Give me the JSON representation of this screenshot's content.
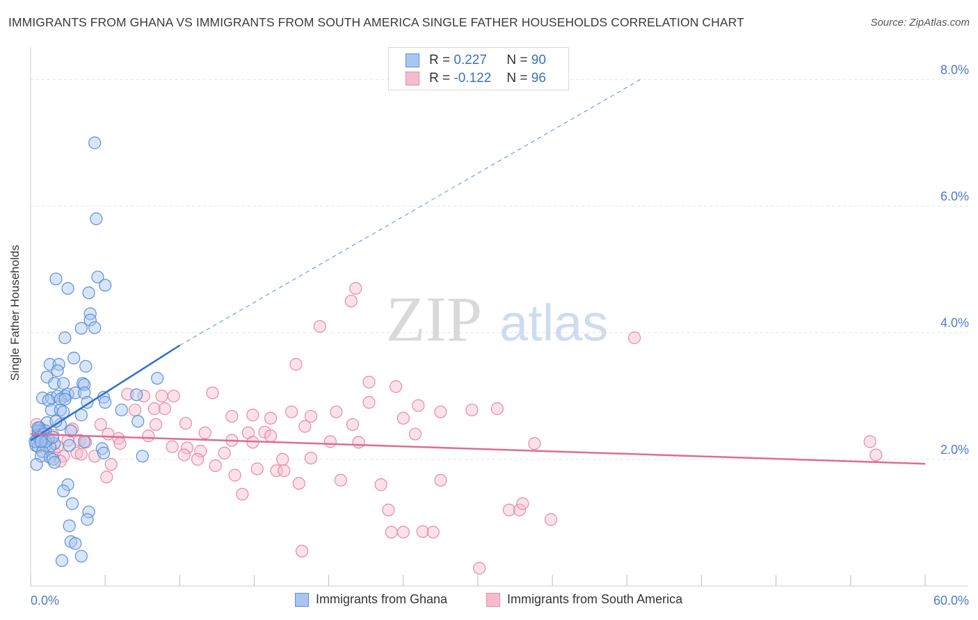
{
  "title": "IMMIGRANTS FROM GHANA VS IMMIGRANTS FROM SOUTH AMERICA SINGLE FATHER HOUSEHOLDS CORRELATION CHART",
  "source": "Source: ZipAtlas.com",
  "watermark": {
    "zip": "ZIP",
    "atlas": "atlas"
  },
  "legend": {
    "rows": [
      {
        "r_label": "R =",
        "r_value": "0.227",
        "n_label": "N =",
        "n_value": "90"
      },
      {
        "r_label": "R =",
        "r_value": "-0.122",
        "n_label": "N =",
        "n_value": "96"
      }
    ]
  },
  "bottom_legend": {
    "ghana": "Immigrants from Ghana",
    "south_america": "Immigrants from South America"
  },
  "colors": {
    "ghana_fill": "#a9c6ef",
    "ghana_stroke": "#5b8fd6",
    "ghana_line": "#2f6fcc",
    "sa_fill": "#f6bccd",
    "sa_stroke": "#e48aa6",
    "sa_line": "#e06b93",
    "tick_label": "#4a7bcf",
    "grid": "#e2e2e2"
  },
  "chart_data": {
    "type": "scatter",
    "title": "IMMIGRANTS FROM GHANA VS IMMIGRANTS FROM SOUTH AMERICA SINGLE FATHER HOUSEHOLDS CORRELATION CHART",
    "xlabel": "",
    "ylabel": "Single Father Households",
    "xlim": [
      0,
      60
    ],
    "ylim": [
      0,
      8.4
    ],
    "x_tick_labels": [
      "0.0%",
      "60.0%"
    ],
    "y_ticks": [
      2,
      4,
      6,
      8
    ],
    "y_tick_labels": [
      "2.0%",
      "4.0%",
      "6.0%",
      "8.0%"
    ],
    "grid": true,
    "legend_placement": "top-center",
    "series": [
      {
        "name": "Immigrants from Ghana",
        "R": 0.227,
        "N": 90,
        "trend": {
          "x": [
            0,
            10
          ],
          "y": [
            2.3,
            3.8
          ],
          "dashed_extension": {
            "x": [
              10,
              40.9
            ],
            "y": [
              3.8,
              8.0
            ]
          }
        },
        "points": [
          [
            4.3,
            7.0
          ],
          [
            4.4,
            5.8
          ],
          [
            1.7,
            4.85
          ],
          [
            4.5,
            4.88
          ],
          [
            2.5,
            4.7
          ],
          [
            5.0,
            4.75
          ],
          [
            3.9,
            4.63
          ],
          [
            4.0,
            4.3
          ],
          [
            4.0,
            4.2
          ],
          [
            3.4,
            4.07
          ],
          [
            4.3,
            4.08
          ],
          [
            2.3,
            3.92
          ],
          [
            1.3,
            3.5
          ],
          [
            2.9,
            3.6
          ],
          [
            1.9,
            3.5
          ],
          [
            3.7,
            3.47
          ],
          [
            1.8,
            3.4
          ],
          [
            1.1,
            3.3
          ],
          [
            1.6,
            3.2
          ],
          [
            2.2,
            3.2
          ],
          [
            3.5,
            3.2
          ],
          [
            3.6,
            3.18
          ],
          [
            8.5,
            3.28
          ],
          [
            0.8,
            2.97
          ],
          [
            1.4,
            2.97
          ],
          [
            1.8,
            3.0
          ],
          [
            2.3,
            3.0
          ],
          [
            2.5,
            3.03
          ],
          [
            3.0,
            3.05
          ],
          [
            3.6,
            3.05
          ],
          [
            4.9,
            2.98
          ],
          [
            5.0,
            2.9
          ],
          [
            7.1,
            3.02
          ],
          [
            1.2,
            2.93
          ],
          [
            2.0,
            2.95
          ],
          [
            2.3,
            2.95
          ],
          [
            3.8,
            2.9
          ],
          [
            1.4,
            2.78
          ],
          [
            2.0,
            2.78
          ],
          [
            2.2,
            2.75
          ],
          [
            6.1,
            2.78
          ],
          [
            3.4,
            2.7
          ],
          [
            7.2,
            2.6
          ],
          [
            1.1,
            2.58
          ],
          [
            0.6,
            2.5
          ],
          [
            0.7,
            2.45
          ],
          [
            0.5,
            2.45
          ],
          [
            0.8,
            2.42
          ],
          [
            1.0,
            2.45
          ],
          [
            2.7,
            2.45
          ],
          [
            0.5,
            2.38
          ],
          [
            0.4,
            2.3
          ],
          [
            0.6,
            2.3
          ],
          [
            0.9,
            2.32
          ],
          [
            1.6,
            2.25
          ],
          [
            2.6,
            2.22
          ],
          [
            3.6,
            2.28
          ],
          [
            0.35,
            2.22
          ],
          [
            0.5,
            2.2
          ],
          [
            1.0,
            2.22
          ],
          [
            1.3,
            2.2
          ],
          [
            0.8,
            2.12
          ],
          [
            4.8,
            2.17
          ],
          [
            0.7,
            2.05
          ],
          [
            1.3,
            2.03
          ],
          [
            1.5,
            2.0
          ],
          [
            1.6,
            1.95
          ],
          [
            4.9,
            2.1
          ],
          [
            7.5,
            2.05
          ],
          [
            0.4,
            1.92
          ],
          [
            2.5,
            1.6
          ],
          [
            2.2,
            1.5
          ],
          [
            2.8,
            1.3
          ],
          [
            3.9,
            1.17
          ],
          [
            2.6,
            0.95
          ],
          [
            3.8,
            1.05
          ],
          [
            2.7,
            0.7
          ],
          [
            3.0,
            0.67
          ],
          [
            3.4,
            0.47
          ],
          [
            2.1,
            0.4
          ],
          [
            0.5,
            2.5
          ],
          [
            0.6,
            2.35
          ],
          [
            0.9,
            2.4
          ],
          [
            1.2,
            2.33
          ],
          [
            0.3,
            2.28
          ],
          [
            1.0,
            2.28
          ],
          [
            1.5,
            2.35
          ],
          [
            0.7,
            2.28
          ],
          [
            2.0,
            2.55
          ],
          [
            1.7,
            2.6
          ]
        ]
      },
      {
        "name": "Immigrants from South America",
        "R": -0.122,
        "N": 96,
        "trend": {
          "x": [
            0,
            60
          ],
          "y": [
            2.4,
            1.93
          ]
        },
        "points": [
          [
            21.8,
            4.7
          ],
          [
            21.5,
            4.5
          ],
          [
            19.4,
            4.1
          ],
          [
            40.5,
            3.92
          ],
          [
            17.8,
            3.5
          ],
          [
            22.7,
            3.22
          ],
          [
            24.5,
            3.15
          ],
          [
            12.2,
            3.05
          ],
          [
            6.5,
            3.03
          ],
          [
            7.6,
            3.0
          ],
          [
            8.8,
            3.0
          ],
          [
            9.6,
            3.0
          ],
          [
            22.7,
            2.9
          ],
          [
            26.0,
            2.85
          ],
          [
            7.0,
            2.78
          ],
          [
            8.3,
            2.8
          ],
          [
            9.0,
            2.8
          ],
          [
            17.5,
            2.75
          ],
          [
            20.5,
            2.75
          ],
          [
            27.5,
            2.75
          ],
          [
            29.6,
            2.78
          ],
          [
            31.3,
            2.8
          ],
          [
            13.5,
            2.68
          ],
          [
            14.9,
            2.7
          ],
          [
            18.8,
            2.68
          ],
          [
            16.1,
            2.65
          ],
          [
            25.0,
            2.65
          ],
          [
            10.4,
            2.57
          ],
          [
            21.6,
            2.55
          ],
          [
            4.7,
            2.55
          ],
          [
            8.4,
            2.55
          ],
          [
            18.4,
            2.52
          ],
          [
            2.8,
            2.48
          ],
          [
            5.2,
            2.4
          ],
          [
            11.7,
            2.42
          ],
          [
            14.6,
            2.42
          ],
          [
            15.7,
            2.43
          ],
          [
            16.1,
            2.37
          ],
          [
            25.8,
            2.4
          ],
          [
            5.9,
            2.33
          ],
          [
            7.9,
            2.37
          ],
          [
            3.3,
            2.3
          ],
          [
            13.5,
            2.3
          ],
          [
            14.9,
            2.27
          ],
          [
            20.1,
            2.28
          ],
          [
            22.0,
            2.27
          ],
          [
            3.7,
            2.27
          ],
          [
            6.0,
            2.25
          ],
          [
            9.5,
            2.2
          ],
          [
            10.5,
            2.18
          ],
          [
            11.4,
            2.13
          ],
          [
            13.0,
            2.1
          ],
          [
            10.3,
            2.07
          ],
          [
            1.6,
            2.1
          ],
          [
            2.2,
            2.05
          ],
          [
            3.1,
            2.1
          ],
          [
            3.4,
            2.08
          ],
          [
            4.3,
            2.05
          ],
          [
            11.2,
            2.0
          ],
          [
            16.9,
            2.0
          ],
          [
            18.8,
            2.02
          ],
          [
            2.0,
            1.97
          ],
          [
            5.4,
            1.92
          ],
          [
            12.4,
            1.9
          ],
          [
            15.2,
            1.85
          ],
          [
            16.5,
            1.82
          ],
          [
            17.0,
            1.82
          ],
          [
            13.7,
            1.75
          ],
          [
            5.1,
            1.72
          ],
          [
            18.0,
            1.62
          ],
          [
            20.8,
            1.67
          ],
          [
            23.5,
            1.6
          ],
          [
            27.5,
            1.67
          ],
          [
            14.2,
            1.45
          ],
          [
            24.0,
            1.2
          ],
          [
            32.1,
            1.2
          ],
          [
            32.8,
            1.2
          ],
          [
            33.0,
            1.3
          ],
          [
            34.9,
            1.05
          ],
          [
            24.2,
            0.85
          ],
          [
            25.0,
            0.85
          ],
          [
            26.3,
            0.86
          ],
          [
            27.0,
            0.85
          ],
          [
            18.2,
            0.55
          ],
          [
            30.1,
            0.28
          ],
          [
            56.3,
            2.28
          ],
          [
            56.7,
            2.07
          ],
          [
            33.8,
            2.25
          ],
          [
            2.5,
            2.3
          ],
          [
            1.0,
            2.42
          ],
          [
            0.4,
            2.55
          ],
          [
            0.6,
            2.48
          ],
          [
            1.2,
            2.3
          ],
          [
            1.8,
            2.2
          ],
          [
            0.8,
            2.12
          ],
          [
            1.5,
            2.38
          ]
        ]
      }
    ]
  }
}
